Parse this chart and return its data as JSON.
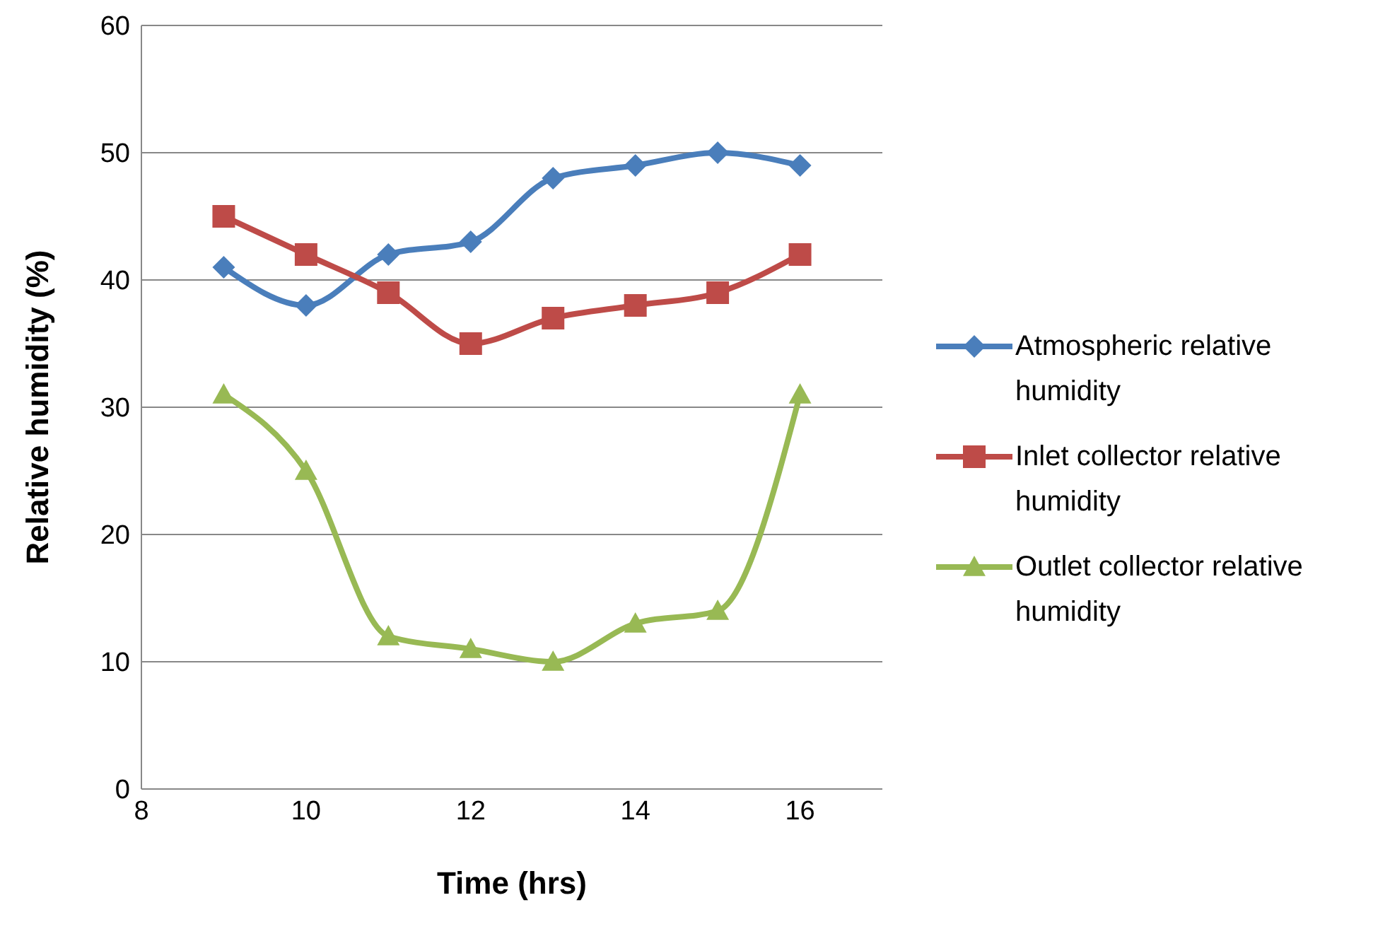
{
  "chart_data": {
    "type": "line",
    "xlabel": "Time (hrs)",
    "ylabel": "Relative humidity (%)",
    "x": [
      9,
      10,
      11,
      12,
      13,
      14,
      15,
      16
    ],
    "series": [
      {
        "name": "Atmospheric relative humidity",
        "color": "#4a7ebb",
        "marker": "diamond",
        "values": [
          41,
          38,
          42,
          43,
          48,
          49,
          50,
          49
        ]
      },
      {
        "name": "Inlet collector relative humidity",
        "color": "#be4b48",
        "marker": "square",
        "values": [
          45,
          42,
          39,
          35,
          37,
          38,
          39,
          42
        ]
      },
      {
        "name": "Outlet collector relative humidity",
        "color": "#98b954",
        "marker": "triangle",
        "values": [
          31,
          25,
          12,
          11,
          10,
          13,
          14,
          31
        ]
      }
    ],
    "xlim": [
      8,
      17
    ],
    "xticks": [
      8,
      10,
      12,
      14,
      16
    ],
    "ylim": [
      0,
      60
    ],
    "yticks": [
      0,
      10,
      20,
      30,
      40,
      50,
      60
    ],
    "grid": "y",
    "legend": "right"
  }
}
